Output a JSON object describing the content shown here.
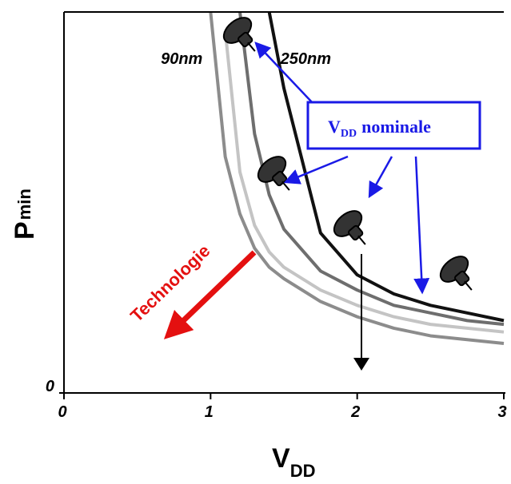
{
  "chart_data": {
    "type": "line",
    "x_label": {
      "main": "V",
      "sub": "DD"
    },
    "y_label": {
      "main": "P",
      "sub": "min"
    },
    "x": [
      1.0,
      1.1,
      1.2,
      1.3,
      1.4,
      1.5,
      1.75,
      2.0,
      2.25,
      2.5,
      2.75,
      3.0
    ],
    "series": [
      {
        "name": "90nm",
        "color": "#8c8c8c",
        "values": [
          1.0,
          0.62,
          0.47,
          0.38,
          0.33,
          0.3,
          0.24,
          0.2,
          0.17,
          0.15,
          0.14,
          0.13
        ]
      },
      {
        "color": "#c4c4c4",
        "values": [
          null,
          0.95,
          0.58,
          0.44,
          0.37,
          0.33,
          0.27,
          0.23,
          0.2,
          0.18,
          0.17,
          0.16
        ]
      },
      {
        "color": "#6e6e6e",
        "values": [
          null,
          null,
          1.0,
          0.68,
          0.52,
          0.43,
          0.32,
          0.27,
          0.23,
          0.21,
          0.19,
          0.18
        ]
      },
      {
        "name": "250nm",
        "color": "#111111",
        "values": [
          null,
          null,
          null,
          null,
          1.0,
          0.8,
          0.42,
          0.31,
          0.26,
          0.23,
          0.21,
          0.19
        ]
      }
    ],
    "xlim": [
      0,
      3
    ],
    "ylim": [
      0,
      1
    ],
    "xticks": [
      0,
      1,
      2,
      3
    ],
    "yticks": [
      0
    ],
    "annotations": {
      "nominal": {
        "main": "V",
        "sub": "DD",
        "rest": "nominale"
      },
      "technology": "Technologie"
    }
  }
}
